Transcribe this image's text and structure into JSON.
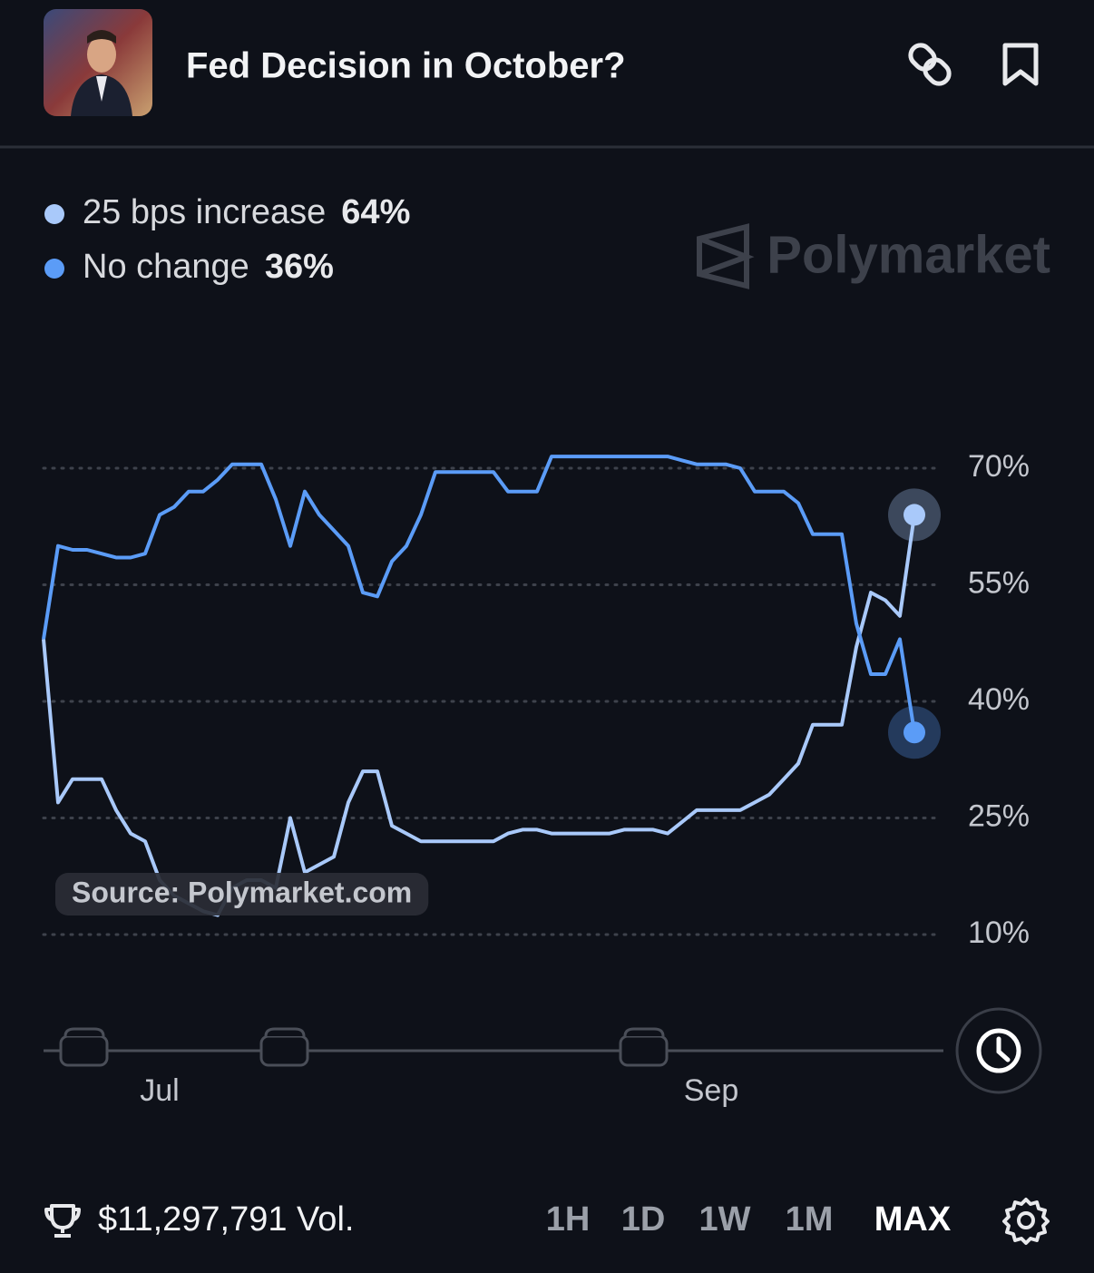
{
  "header": {
    "title": "Fed Decision in October?"
  },
  "chart_data": {
    "type": "line",
    "watermark": "Polymarket",
    "source": "Source: Polymarket.com",
    "categories": [
      null,
      null,
      null,
      null,
      null,
      null,
      null,
      null,
      "Jul",
      null,
      null,
      null,
      null,
      null,
      null,
      null,
      null,
      null,
      null,
      null,
      null,
      null,
      null,
      null,
      null,
      null,
      null,
      null,
      null,
      null,
      null,
      null,
      null,
      null,
      null,
      null,
      null,
      null,
      null,
      null,
      null,
      null,
      null,
      null,
      null,
      null,
      "Sep",
      null,
      null,
      null,
      null,
      null,
      null,
      null,
      null,
      null,
      null,
      null,
      null,
      null,
      null
    ],
    "series": [
      {
        "name": "25 bps increase",
        "color": "#a9c9fa",
        "values": [
          48,
          27,
          30,
          30,
          30,
          26,
          23,
          22,
          17,
          15,
          14,
          13,
          12.5,
          16,
          17,
          17,
          16,
          25,
          18,
          19,
          20,
          27,
          31,
          31,
          24,
          23,
          22,
          22,
          22,
          22,
          22,
          22,
          23,
          23.5,
          23.5,
          23,
          23,
          23,
          23,
          23,
          23.5,
          23.5,
          23.5,
          23,
          24.5,
          26,
          26,
          26,
          26,
          27,
          28,
          30,
          32,
          37,
          37,
          37,
          47,
          54,
          53,
          51,
          64
        ],
        "value_labels": [
          null,
          null,
          null,
          null,
          null,
          null,
          null,
          null,
          null,
          null,
          null,
          null,
          null,
          null,
          null,
          null,
          null,
          null,
          null,
          null,
          null,
          null,
          null,
          null,
          null,
          null,
          null,
          null,
          null,
          null,
          null,
          null,
          null,
          null,
          null,
          null,
          null,
          null,
          null,
          null,
          null,
          null,
          null,
          null,
          null,
          null,
          null,
          null,
          null,
          null,
          null,
          null,
          null,
          null,
          null,
          null,
          null,
          null,
          null,
          null,
          "64%"
        ]
      },
      {
        "name": "No change",
        "color": "#5b9cf7",
        "values": [
          48,
          60,
          59.5,
          59.5,
          59,
          58.5,
          58.5,
          59,
          64,
          65,
          67,
          67,
          68.5,
          70.5,
          70.5,
          70.5,
          66,
          60,
          67,
          64,
          62,
          60,
          54,
          53.5,
          58,
          60,
          64,
          69.5,
          69.5,
          69.5,
          69.5,
          69.5,
          67,
          67,
          67,
          71.5,
          71.5,
          71.5,
          71.5,
          71.5,
          71.5,
          71.5,
          71.5,
          71.5,
          71,
          70.5,
          70.5,
          70.5,
          70,
          67,
          67,
          67,
          65.5,
          61.5,
          61.5,
          61.5,
          50,
          43.5,
          43.5,
          48,
          36
        ],
        "value_labels": [
          null,
          null,
          null,
          null,
          null,
          null,
          null,
          null,
          null,
          null,
          null,
          null,
          null,
          null,
          null,
          null,
          null,
          null,
          null,
          null,
          null,
          null,
          null,
          null,
          null,
          null,
          null,
          null,
          null,
          null,
          null,
          null,
          null,
          null,
          null,
          null,
          null,
          null,
          null,
          null,
          null,
          null,
          null,
          null,
          null,
          null,
          null,
          null,
          null,
          null,
          null,
          null,
          null,
          null,
          null,
          null,
          null,
          null,
          null,
          null,
          "36%"
        ]
      }
    ],
    "ylim": [
      10,
      73
    ],
    "yticks": [
      {
        "value": 10,
        "label": "10%"
      },
      {
        "value": 25,
        "label": "25%"
      },
      {
        "value": 40,
        "label": "40%"
      },
      {
        "value": 55,
        "label": "55%"
      },
      {
        "value": 70,
        "label": "70%"
      }
    ],
    "grid": true
  },
  "footer": {
    "volume": "$11,297,791 Vol.",
    "ranges": [
      "1H",
      "1D",
      "1W",
      "1M",
      "MAX"
    ]
  }
}
